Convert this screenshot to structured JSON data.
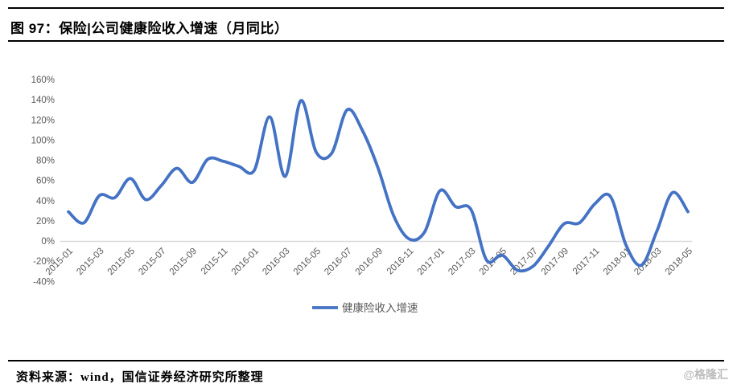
{
  "header": {
    "title": "图 97：保险|公司健康险收入增速（月同比）"
  },
  "chart_data": {
    "type": "line",
    "title": "图 97：保险公司健康险收入增速（月同比）",
    "x": [
      "2015-01",
      "2015-02",
      "2015-03",
      "2015-04",
      "2015-05",
      "2015-06",
      "2015-07",
      "2015-08",
      "2015-09",
      "2015-10",
      "2015-11",
      "2015-12",
      "2016-01",
      "2016-02",
      "2016-03",
      "2016-04",
      "2016-05",
      "2016-06",
      "2016-07",
      "2016-08",
      "2016-09",
      "2016-10",
      "2016-11",
      "2016-12",
      "2017-01",
      "2017-02",
      "2017-03",
      "2017-04",
      "2017-05",
      "2017-06",
      "2017-07",
      "2017-08",
      "2017-09",
      "2017-10",
      "2017-11",
      "2017-12",
      "2018-01",
      "2018-02",
      "2018-03",
      "2018-04",
      "2018-05"
    ],
    "series": [
      {
        "name": "健康险收入增速",
        "values": [
          29,
          18,
          45,
          43,
          62,
          41,
          55,
          72,
          58,
          81,
          79,
          74,
          70,
          123,
          64,
          139,
          88,
          87,
          130,
          109,
          72,
          25,
          2,
          9,
          50,
          34,
          31,
          -19,
          -14,
          -29,
          -25,
          -5,
          17,
          18,
          37,
          44,
          -4,
          -24,
          10,
          48,
          29
        ]
      }
    ],
    "xlabel": "",
    "ylabel": "",
    "ylim": [
      -40,
      160
    ],
    "y_ticks": [
      160,
      140,
      120,
      100,
      80,
      60,
      40,
      20,
      0,
      -20,
      -40
    ],
    "y_tick_suffix": "%",
    "x_tick_step": 2,
    "x_tick_rotation_deg": 45,
    "grid": "off",
    "zero_axis_line": true,
    "legend_position": "bottom-center",
    "smooth": true,
    "colors": {
      "line": "#4472C4",
      "axis_line": "#D9D9D9",
      "tick_label": "#595959",
      "legend_label": "#595959"
    }
  },
  "footer": {
    "source": "资料来源：wind，国信证券经济研究所整理",
    "watermark": "@格隆汇"
  }
}
